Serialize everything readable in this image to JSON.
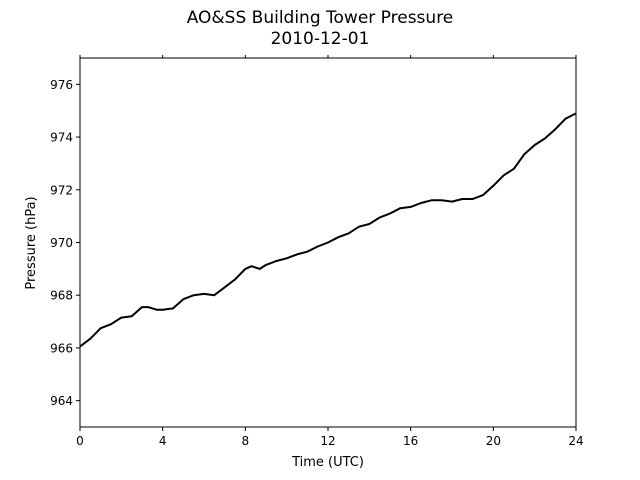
{
  "chart_data": {
    "type": "line",
    "title": "AO&SS Building Tower Pressure",
    "subtitle": "2010-12-01",
    "xlabel": "Time (UTC)",
    "ylabel": "Pressure (hPa)",
    "xlim": [
      0,
      24
    ],
    "ylim": [
      963,
      977
    ],
    "xticks": [
      0,
      4,
      8,
      12,
      16,
      20,
      24
    ],
    "yticks": [
      964,
      966,
      968,
      970,
      972,
      974,
      976
    ],
    "grid": false,
    "line_color": "#000000",
    "series": [
      {
        "x": [
          0,
          0.5,
          1,
          1.5,
          2,
          2.5,
          3,
          3.3,
          3.7,
          4,
          4.5,
          5,
          5.5,
          6,
          6.5,
          7,
          7.5,
          8,
          8.3,
          8.7,
          9,
          9.5,
          10,
          10.5,
          11,
          11.5,
          12,
          12.5,
          13,
          13.5,
          14,
          14.5,
          15,
          15.5,
          16,
          16.5,
          17,
          17.5,
          18,
          18.5,
          19,
          19.5,
          20,
          20.5,
          21,
          21.5,
          22,
          22.5,
          23,
          23.5,
          24
        ],
        "y": [
          966.05,
          966.35,
          966.75,
          966.9,
          967.15,
          967.2,
          967.55,
          967.55,
          967.45,
          967.45,
          967.5,
          967.85,
          968.0,
          968.05,
          968.0,
          968.3,
          968.6,
          969.0,
          969.1,
          969.0,
          969.15,
          969.3,
          969.4,
          969.55,
          969.65,
          969.85,
          970.0,
          970.2,
          970.35,
          970.6,
          970.7,
          970.95,
          971.1,
          971.3,
          971.35,
          971.5,
          971.6,
          971.6,
          971.55,
          971.65,
          971.65,
          971.8,
          972.15,
          972.55,
          972.8,
          973.35,
          973.7,
          973.95,
          974.3,
          974.7,
          974.9
        ]
      }
    ]
  }
}
